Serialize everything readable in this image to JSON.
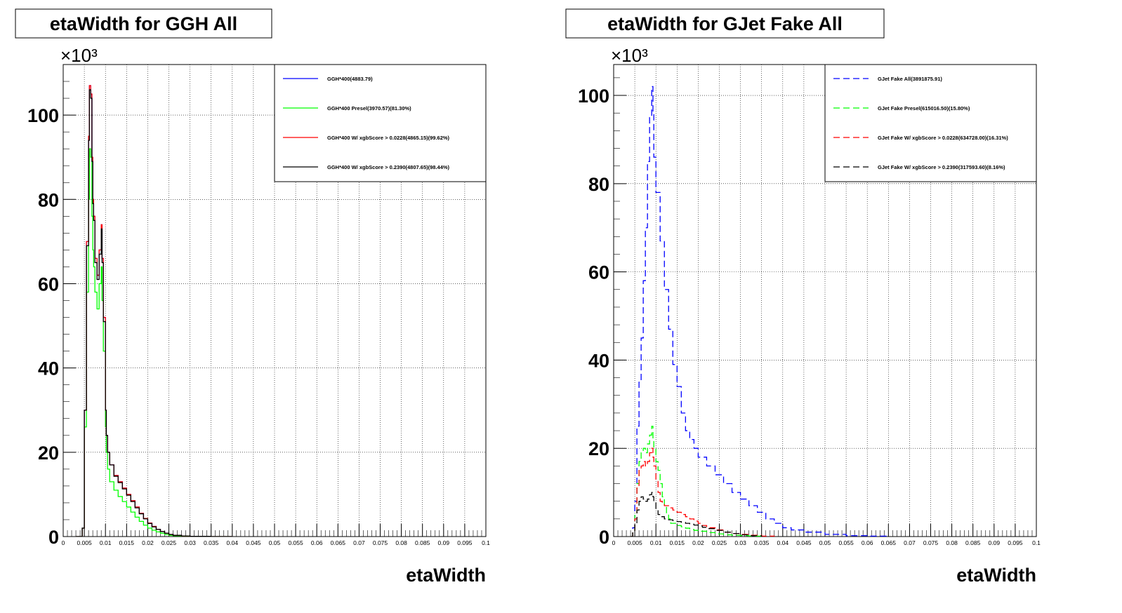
{
  "chart_data": [
    {
      "type": "line",
      "title": "etaWidth for GGH All",
      "xlabel": "etaWidth",
      "ylabel": "",
      "y_multiplier": "×10³",
      "xlim": [
        0,
        0.1
      ],
      "ylim": [
        0,
        112
      ],
      "x_ticks": [
        "0",
        "0.005",
        "0.01",
        "0.015",
        "0.02",
        "0.025",
        "0.03",
        "0.035",
        "0.04",
        "0.045",
        "0.05",
        "0.055",
        "0.06",
        "0.065",
        "0.07",
        "0.075",
        "0.08",
        "0.085",
        "0.09",
        "0.095",
        "0.1"
      ],
      "y_ticks": [
        "0",
        "20",
        "40",
        "60",
        "80",
        "100"
      ],
      "grid": true,
      "legend_position": "top-right",
      "series": [
        {
          "name": "GGH*400(4883.79)",
          "color": "#0000ff",
          "dash": "solid",
          "x": [
            0.003,
            0.004,
            0.0045,
            0.005,
            0.0055,
            0.006,
            0.0062,
            0.0065,
            0.0068,
            0.007,
            0.0072,
            0.0075,
            0.008,
            0.0085,
            0.009,
            0.0092,
            0.0095,
            0.01,
            0.0102,
            0.0105,
            0.011,
            0.012,
            0.013,
            0.014,
            0.015,
            0.016,
            0.017,
            0.018,
            0.019,
            0.02,
            0.021,
            0.022,
            0.023,
            0.024,
            0.025,
            0.026,
            0.028,
            0.03,
            0.035,
            0.04
          ],
          "y": [
            0,
            0,
            2,
            30,
            70,
            95,
            107,
            105,
            90,
            80,
            76,
            66,
            62,
            68,
            74,
            66,
            52,
            30,
            24,
            20,
            17,
            14.5,
            13,
            11.5,
            10,
            8.5,
            7,
            5.5,
            4.3,
            3.2,
            2.4,
            1.7,
            1.2,
            0.8,
            0.5,
            0.3,
            0.15,
            0.05,
            0,
            0
          ]
        },
        {
          "name": "GGH*400 Presel(3970.57)(81.30%)",
          "color": "#00ff00",
          "dash": "solid",
          "x": [
            0.003,
            0.004,
            0.0045,
            0.005,
            0.0055,
            0.006,
            0.0062,
            0.0065,
            0.0068,
            0.007,
            0.0072,
            0.0075,
            0.008,
            0.0085,
            0.009,
            0.0092,
            0.0095,
            0.01,
            0.0102,
            0.0105,
            0.011,
            0.012,
            0.013,
            0.014,
            0.015,
            0.016,
            0.017,
            0.018,
            0.019,
            0.02,
            0.021,
            0.022,
            0.023,
            0.024,
            0.025,
            0.026,
            0.028,
            0.03,
            0.035,
            0.04
          ],
          "y": [
            0,
            0,
            2,
            26,
            58,
            80,
            92,
            90,
            76,
            68,
            64,
            58,
            54,
            60,
            64,
            56,
            44,
            26,
            20,
            16,
            13,
            11,
            9.5,
            8.3,
            7,
            5.8,
            4.6,
            3.6,
            2.7,
            2,
            1.5,
            1.1,
            0.8,
            0.5,
            0.3,
            0.2,
            0.1,
            0.03,
            0,
            0
          ]
        },
        {
          "name": "GGH*400 W/ xgbScore > 0.0228(4865.15)(99.62%)",
          "color": "#ff0000",
          "dash": "solid",
          "x": [
            0.003,
            0.004,
            0.0045,
            0.005,
            0.0055,
            0.006,
            0.0062,
            0.0065,
            0.0068,
            0.007,
            0.0072,
            0.0075,
            0.008,
            0.0085,
            0.009,
            0.0092,
            0.0095,
            0.01,
            0.0102,
            0.0105,
            0.011,
            0.012,
            0.013,
            0.014,
            0.015,
            0.016,
            0.017,
            0.018,
            0.019,
            0.02,
            0.021,
            0.022,
            0.023,
            0.024,
            0.025,
            0.026,
            0.028,
            0.03,
            0.035,
            0.04
          ],
          "y": [
            0,
            0,
            2,
            30,
            70,
            95,
            107,
            105,
            90,
            80,
            76,
            66,
            62,
            68,
            74,
            66,
            52,
            30,
            24,
            20,
            17,
            14.5,
            13,
            11.5,
            10,
            8.5,
            7,
            5.5,
            4.3,
            3.2,
            2.4,
            1.7,
            1.2,
            0.8,
            0.5,
            0.3,
            0.15,
            0.05,
            0,
            0
          ]
        },
        {
          "name": "GGH*400 W/ xgbScore > 0.2390(4807.65)(98.44%)",
          "color": "#000000",
          "dash": "solid",
          "x": [
            0.003,
            0.004,
            0.0045,
            0.005,
            0.0055,
            0.006,
            0.0062,
            0.0065,
            0.0068,
            0.007,
            0.0072,
            0.0075,
            0.008,
            0.0085,
            0.009,
            0.0092,
            0.0095,
            0.01,
            0.0102,
            0.0105,
            0.011,
            0.012,
            0.013,
            0.014,
            0.015,
            0.016,
            0.017,
            0.018,
            0.019,
            0.02,
            0.021,
            0.022,
            0.023,
            0.024,
            0.025,
            0.026,
            0.028,
            0.03,
            0.035,
            0.04
          ],
          "y": [
            0,
            0,
            2,
            30,
            69,
            94,
            106,
            104,
            89,
            79,
            75,
            65,
            61,
            67,
            73,
            65,
            51,
            30,
            24,
            20,
            17,
            14.3,
            12.8,
            11.3,
            9.8,
            8.3,
            6.8,
            5.4,
            4.2,
            3.1,
            2.3,
            1.7,
            1.2,
            0.8,
            0.5,
            0.3,
            0.15,
            0.05,
            0,
            0
          ]
        }
      ]
    },
    {
      "type": "line",
      "title": "etaWidth for GJet Fake All",
      "xlabel": "etaWidth",
      "ylabel": "",
      "y_multiplier": "×10³",
      "xlim": [
        0,
        0.1
      ],
      "ylim": [
        0,
        107
      ],
      "x_ticks": [
        "0",
        "0.005",
        "0.01",
        "0.015",
        "0.02",
        "0.025",
        "0.03",
        "0.035",
        "0.04",
        "0.045",
        "0.05",
        "0.055",
        "0.06",
        "0.065",
        "0.07",
        "0.075",
        "0.08",
        "0.085",
        "0.09",
        "0.095",
        "0.1"
      ],
      "y_ticks": [
        "0",
        "20",
        "40",
        "60",
        "80",
        "100"
      ],
      "grid": true,
      "legend_position": "top-right",
      "series": [
        {
          "name": "GJet Fake All(3891875.91)",
          "color": "#0000ff",
          "dash": "dashed",
          "x": [
            0.004,
            0.0045,
            0.005,
            0.0055,
            0.006,
            0.0065,
            0.007,
            0.0075,
            0.008,
            0.0085,
            0.009,
            0.0093,
            0.0095,
            0.01,
            0.011,
            0.012,
            0.013,
            0.014,
            0.015,
            0.016,
            0.017,
            0.018,
            0.019,
            0.02,
            0.022,
            0.024,
            0.026,
            0.028,
            0.03,
            0.032,
            0.034,
            0.036,
            0.038,
            0.04,
            0.042,
            0.045,
            0.05,
            0.055,
            0.06,
            0.065
          ],
          "y": [
            0,
            2,
            8,
            25,
            35,
            45,
            58,
            70,
            85,
            95,
            102,
            96,
            86,
            78,
            67,
            56,
            47,
            39,
            34,
            28,
            24,
            22,
            20,
            18,
            16,
            14,
            12,
            10,
            8.5,
            7,
            5.5,
            4,
            3,
            2,
            1.5,
            1,
            0.5,
            0.2,
            0.1,
            0
          ]
        },
        {
          "name": "GJet Fake Presel(615016.50)(15.80%)",
          "color": "#00ff00",
          "dash": "dashed",
          "x": [
            0.004,
            0.0045,
            0.005,
            0.0055,
            0.006,
            0.0065,
            0.007,
            0.0075,
            0.008,
            0.0085,
            0.009,
            0.0093,
            0.0095,
            0.01,
            0.0105,
            0.011,
            0.0115,
            0.012,
            0.0125,
            0.013,
            0.0135,
            0.014,
            0.015,
            0.016,
            0.017,
            0.018,
            0.019,
            0.02,
            0.022,
            0.024,
            0.026,
            0.028,
            0.03,
            0.032,
            0.035
          ],
          "y": [
            0,
            1,
            5,
            12,
            17,
            19,
            20,
            19,
            21,
            23,
            25,
            22,
            20,
            17,
            15,
            12,
            9,
            7,
            5,
            4,
            3,
            3,
            2.5,
            2.2,
            1.9,
            1.6,
            1.4,
            1.2,
            0.9,
            0.6,
            0.4,
            0.3,
            0.2,
            0.1,
            0
          ]
        },
        {
          "name": "GJet Fake W/ xgbScore > 0.0228(634728.00)(16.31%)",
          "color": "#ff0000",
          "dash": "dashed",
          "x": [
            0.004,
            0.0045,
            0.005,
            0.0055,
            0.006,
            0.0065,
            0.007,
            0.0075,
            0.008,
            0.0085,
            0.009,
            0.0093,
            0.0095,
            0.01,
            0.0105,
            0.011,
            0.0115,
            0.012,
            0.013,
            0.014,
            0.015,
            0.016,
            0.017,
            0.018,
            0.019,
            0.02,
            0.021,
            0.022,
            0.024,
            0.026,
            0.028,
            0.03,
            0.032,
            0.035,
            0.038
          ],
          "y": [
            0,
            1,
            4,
            11,
            15,
            16,
            17,
            16,
            17,
            19,
            20,
            18,
            16,
            13,
            10,
            8,
            7.5,
            7,
            6.5,
            6,
            5.5,
            5,
            4.5,
            4,
            3.5,
            3,
            2.5,
            2,
            1.5,
            1,
            0.7,
            0.5,
            0.3,
            0.1,
            0
          ]
        },
        {
          "name": "GJet Fake W/ xgbScore > 0.2390(317593.60)(8.16%)",
          "color": "#000000",
          "dash": "dashed",
          "x": [
            0.004,
            0.0045,
            0.005,
            0.0055,
            0.006,
            0.0065,
            0.007,
            0.0075,
            0.008,
            0.0085,
            0.009,
            0.0093,
            0.0095,
            0.01,
            0.0105,
            0.011,
            0.012,
            0.013,
            0.014,
            0.015,
            0.016,
            0.017,
            0.018,
            0.019,
            0.02,
            0.021,
            0.022,
            0.024,
            0.026,
            0.028,
            0.03,
            0.032,
            0.035
          ],
          "y": [
            0,
            1,
            3,
            6,
            8,
            9,
            8.5,
            8,
            8.5,
            9.5,
            10,
            9,
            8,
            6,
            5,
            4.5,
            4,
            3.8,
            3.6,
            3.4,
            3.2,
            3,
            2.8,
            2.6,
            2.4,
            2.1,
            1.8,
            1.4,
            1,
            0.7,
            0.4,
            0.2,
            0
          ]
        }
      ]
    }
  ]
}
